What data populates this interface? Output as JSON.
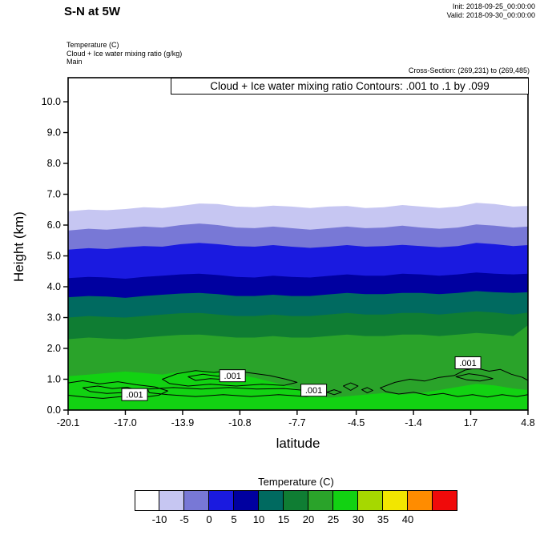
{
  "header": {
    "title": "S-N at 5W",
    "init_label": "Init: 2018-09-25_00:00:00",
    "valid_label": "Valid: 2018-09-30_00:00:00",
    "field_lines": [
      "Temperature  (C)",
      "Cloud + Ice water mixing ratio  (g/kg)",
      "Main"
    ],
    "cross_section": "Cross-Section: (269,231) to (269,485)"
  },
  "chart_data": {
    "type": "heatmap",
    "subtype": "filled-contour-vertical-cross-section",
    "title": "Cloud + Ice water mixing ratio Contours: .001 to .1 by .099",
    "xlabel": "latitude",
    "ylabel": "Height (km)",
    "xlim": [
      -20.1,
      4.8
    ],
    "ylim": [
      0,
      10.78
    ],
    "x_ticks": [
      -20.1,
      -17.0,
      -13.9,
      -10.8,
      -7.7,
      -4.5,
      -1.4,
      1.7,
      4.8
    ],
    "x_tick_labels": [
      "-20.1",
      "-17.0",
      "-13.9",
      "-10.8",
      "-7.7",
      "-4.5",
      "-1.4",
      "1.7",
      "4.8"
    ],
    "y_ticks": [
      0,
      1,
      2,
      3,
      4,
      5,
      6,
      7,
      8,
      9,
      10
    ],
    "y_tick_labels": [
      "0.0",
      "1.0",
      "2.0",
      "3.0",
      "4.0",
      "5.0",
      "6.0",
      "7.0",
      "8.0",
      "9.0",
      "10.0"
    ],
    "background_color": "#ffffff",
    "lats": [
      -20.1,
      -19,
      -18,
      -17,
      -16,
      -15,
      -14,
      -13,
      -12,
      -11,
      -10,
      -9,
      -8,
      -7,
      -6,
      -5,
      -4,
      -3,
      -2,
      -1,
      0,
      1,
      2,
      3,
      4,
      4.8
    ],
    "temperature_bands": [
      {
        "level_c": -10,
        "color": "#c6c6f2",
        "heights_km": [
          6.45,
          6.5,
          6.48,
          6.52,
          6.58,
          6.55,
          6.62,
          6.7,
          6.68,
          6.6,
          6.58,
          6.63,
          6.6,
          6.55,
          6.6,
          6.62,
          6.55,
          6.58,
          6.65,
          6.6,
          6.55,
          6.6,
          6.72,
          6.68,
          6.6,
          6.62
        ]
      },
      {
        "level_c": -5,
        "color": "#7878d6",
        "heights_km": [
          5.82,
          5.88,
          5.85,
          5.9,
          5.95,
          5.92,
          6.0,
          6.05,
          6.0,
          5.92,
          5.9,
          5.95,
          5.9,
          5.85,
          5.9,
          5.95,
          5.9,
          5.92,
          5.98,
          5.92,
          5.88,
          5.92,
          6.02,
          5.98,
          5.92,
          5.95
        ]
      },
      {
        "level_c": 0,
        "color": "#1a1ae0",
        "heights_km": [
          5.2,
          5.25,
          5.22,
          5.28,
          5.32,
          5.3,
          5.38,
          5.42,
          5.38,
          5.32,
          5.3,
          5.35,
          5.3,
          5.26,
          5.3,
          5.35,
          5.3,
          5.32,
          5.36,
          5.32,
          5.28,
          5.32,
          5.42,
          5.38,
          5.32,
          5.35
        ]
      },
      {
        "level_c": 5,
        "color": "#0000a0",
        "heights_km": [
          4.28,
          4.32,
          4.3,
          4.26,
          4.32,
          4.36,
          4.4,
          4.42,
          4.38,
          4.32,
          4.3,
          4.36,
          4.32,
          4.3,
          4.35,
          4.4,
          4.36,
          4.36,
          4.42,
          4.4,
          4.36,
          4.4,
          4.46,
          4.42,
          4.4,
          4.42
        ]
      },
      {
        "level_c": 10,
        "color": "#006a60",
        "heights_km": [
          3.66,
          3.7,
          3.68,
          3.64,
          3.7,
          3.74,
          3.78,
          3.8,
          3.76,
          3.7,
          3.7,
          3.74,
          3.7,
          3.7,
          3.75,
          3.8,
          3.76,
          3.76,
          3.8,
          3.8,
          3.76,
          3.8,
          3.86,
          3.82,
          3.8,
          3.82
        ]
      },
      {
        "level_c": 15,
        "color": "#0f7d33",
        "heights_km": [
          3.0,
          3.05,
          3.02,
          3.0,
          3.05,
          3.1,
          3.14,
          3.15,
          3.1,
          3.05,
          3.05,
          3.1,
          3.05,
          3.05,
          3.1,
          3.15,
          3.1,
          3.1,
          3.15,
          3.15,
          3.1,
          3.15,
          3.2,
          3.16,
          3.1,
          3.16
        ]
      },
      {
        "level_c": 20,
        "color": "#2aa32a",
        "heights_km": [
          2.3,
          2.35,
          2.32,
          2.3,
          2.35,
          2.4,
          2.44,
          2.45,
          2.4,
          2.35,
          2.35,
          2.4,
          2.35,
          2.35,
          2.4,
          2.45,
          2.4,
          2.4,
          2.45,
          2.45,
          2.4,
          2.45,
          2.5,
          2.46,
          2.4,
          2.75
        ]
      },
      {
        "level_c": 25,
        "color": "#12d212",
        "heights_km": [
          1.1,
          1.15,
          1.2,
          1.25,
          1.2,
          1.15,
          1.25,
          1.3,
          1.25,
          1.15,
          1.05,
          0.9,
          0.75,
          0.55,
          0.4,
          0.45,
          0.5,
          0.55,
          0.5,
          0.55,
          0.65,
          0.75,
          0.85,
          0.8,
          0.7,
          0.65
        ]
      }
    ],
    "cloud_contours": {
      "field": "Cloud + Ice water mixing ratio (g/kg)",
      "levels": [
        0.001,
        0.1
      ],
      "loops": [
        [
          [
            -20.1,
            0.88
          ],
          [
            -19.3,
            0.95
          ],
          [
            -18.4,
            0.85
          ],
          [
            -17.4,
            0.92
          ],
          [
            -16.4,
            0.82
          ],
          [
            -15.4,
            0.75
          ],
          [
            -14.7,
            0.62
          ],
          [
            -15.2,
            0.48
          ],
          [
            -16.2,
            0.4
          ],
          [
            -17.2,
            0.44
          ],
          [
            -18.2,
            0.38
          ],
          [
            -19.2,
            0.42
          ],
          [
            -20.1,
            0.48
          ]
        ],
        [
          [
            -19.3,
            0.72
          ],
          [
            -18.5,
            0.78
          ],
          [
            -17.7,
            0.7
          ],
          [
            -16.9,
            0.74
          ],
          [
            -16.4,
            0.65
          ],
          [
            -17.1,
            0.57
          ],
          [
            -18.0,
            0.54
          ],
          [
            -18.9,
            0.6
          ]
        ],
        [
          [
            -15.0,
            1.0
          ],
          [
            -14.2,
            1.18
          ],
          [
            -13.2,
            1.28
          ],
          [
            -12.2,
            1.22
          ],
          [
            -11.2,
            1.28
          ],
          [
            -10.2,
            1.2
          ],
          [
            -9.2,
            1.12
          ],
          [
            -8.3,
            1.0
          ],
          [
            -7.7,
            0.9
          ],
          [
            -8.4,
            0.8
          ],
          [
            -9.6,
            0.84
          ],
          [
            -11.0,
            0.78
          ],
          [
            -12.4,
            0.84
          ],
          [
            -13.6,
            0.78
          ],
          [
            -14.6,
            0.86
          ]
        ],
        [
          [
            -13.6,
            1.08
          ],
          [
            -12.8,
            1.16
          ],
          [
            -12.0,
            1.1
          ],
          [
            -11.2,
            1.16
          ],
          [
            -10.6,
            1.06
          ],
          [
            -11.4,
            0.98
          ],
          [
            -12.4,
            1.02
          ],
          [
            -13.2,
            0.96
          ]
        ],
        [
          [
            -15.8,
            0.68
          ],
          [
            -14.4,
            0.73
          ],
          [
            -12.9,
            0.68
          ],
          [
            -11.4,
            0.73
          ],
          [
            -9.9,
            0.68
          ],
          [
            -8.4,
            0.7
          ],
          [
            -7.0,
            0.62
          ],
          [
            -6.4,
            0.52
          ],
          [
            -7.2,
            0.44
          ],
          [
            -8.7,
            0.5
          ],
          [
            -10.2,
            0.44
          ],
          [
            -11.7,
            0.5
          ],
          [
            -13.2,
            0.44
          ],
          [
            -14.7,
            0.5
          ],
          [
            -15.7,
            0.56
          ]
        ],
        [
          [
            -6.1,
            0.58
          ],
          [
            -5.7,
            0.66
          ],
          [
            -5.3,
            0.58
          ],
          [
            -5.7,
            0.5
          ]
        ],
        [
          [
            -5.2,
            0.78
          ],
          [
            -4.8,
            0.88
          ],
          [
            -4.4,
            0.78
          ],
          [
            -4.8,
            0.64
          ]
        ],
        [
          [
            -4.2,
            0.66
          ],
          [
            -3.9,
            0.73
          ],
          [
            -3.6,
            0.64
          ],
          [
            -3.9,
            0.56
          ]
        ],
        [
          [
            -3.2,
            0.72
          ],
          [
            -2.4,
            0.9
          ],
          [
            -1.6,
            1.0
          ],
          [
            -0.8,
            0.94
          ],
          [
            0.0,
            1.06
          ],
          [
            0.8,
            1.12
          ],
          [
            1.4,
            1.3
          ],
          [
            2.0,
            1.36
          ],
          [
            2.7,
            1.26
          ],
          [
            3.3,
            1.32
          ],
          [
            3.9,
            1.16
          ],
          [
            4.5,
            1.06
          ],
          [
            4.8,
            0.96
          ],
          [
            4.8,
            0.5
          ],
          [
            4.2,
            0.44
          ],
          [
            3.4,
            0.5
          ],
          [
            2.6,
            0.42
          ],
          [
            1.8,
            0.5
          ],
          [
            1.0,
            0.44
          ],
          [
            0.2,
            0.54
          ],
          [
            -0.6,
            0.48
          ],
          [
            -1.4,
            0.58
          ],
          [
            -2.2,
            0.52
          ],
          [
            -2.9,
            0.6
          ]
        ],
        [
          [
            0.9,
            1.08
          ],
          [
            1.6,
            1.18
          ],
          [
            2.3,
            1.12
          ],
          [
            2.9,
            1.02
          ],
          [
            2.2,
            0.94
          ],
          [
            1.5,
            0.98
          ]
        ]
      ],
      "labels": [
        {
          "lat": -16.5,
          "km": 0.49,
          "text": ".001"
        },
        {
          "lat": -11.2,
          "km": 1.1,
          "text": ".001"
        },
        {
          "lat": -6.8,
          "km": 0.63,
          "text": ".001"
        },
        {
          "lat": 1.55,
          "km": 1.52,
          "text": ".001"
        }
      ]
    },
    "colorbar": {
      "title": "Temperature  (C)",
      "colors": [
        "#ffffff",
        "#c6c6f2",
        "#7878d6",
        "#1a1ae0",
        "#0000a0",
        "#006a60",
        "#0f7d33",
        "#2aa32a",
        "#12d212",
        "#a6d800",
        "#f2e600",
        "#ff8c00",
        "#f00a0a"
      ],
      "tick_labels": [
        "-10",
        "-5",
        "0",
        "5",
        "10",
        "15",
        "20",
        "25",
        "30",
        "35",
        "40"
      ]
    }
  }
}
